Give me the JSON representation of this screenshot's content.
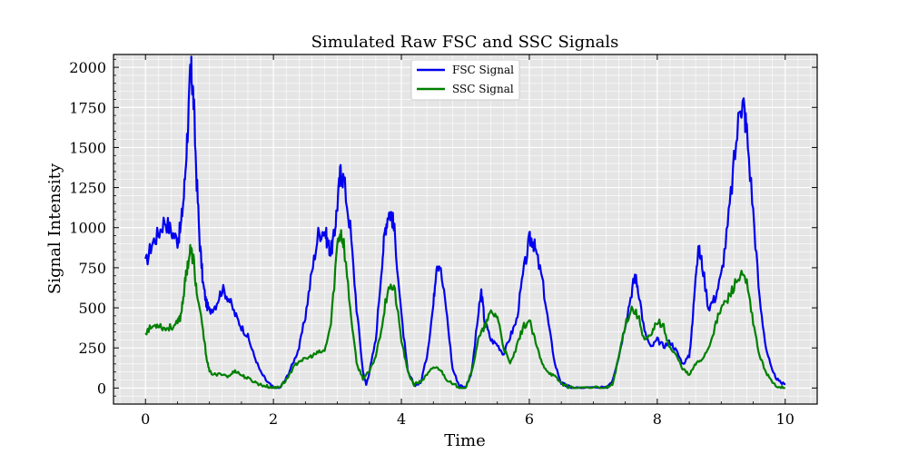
{
  "chart_data": {
    "type": "line",
    "title": "Simulated Raw FSC and SSC Signals",
    "xlabel": "Time",
    "ylabel": "Signal Intensity",
    "xlim": [
      -0.5,
      10.5
    ],
    "ylim": [
      -100,
      2080
    ],
    "x_ticks": [
      0,
      2,
      4,
      6,
      8,
      10
    ],
    "y_ticks": [
      0,
      250,
      500,
      750,
      1000,
      1250,
      1500,
      1750,
      2000
    ],
    "grid": true,
    "legend_position": "top-center",
    "series": [
      {
        "name": "FSC Signal",
        "color": "#0000ee",
        "points": [
          [
            0.0,
            770
          ],
          [
            0.1,
            900
          ],
          [
            0.2,
            960
          ],
          [
            0.3,
            1050
          ],
          [
            0.4,
            980
          ],
          [
            0.5,
            920
          ],
          [
            0.55,
            1000
          ],
          [
            0.6,
            1200
          ],
          [
            0.65,
            1550
          ],
          [
            0.7,
            1930
          ],
          [
            0.72,
            1960
          ],
          [
            0.75,
            1800
          ],
          [
            0.8,
            1300
          ],
          [
            0.85,
            900
          ],
          [
            0.9,
            650
          ],
          [
            0.95,
            530
          ],
          [
            1.0,
            480
          ],
          [
            1.1,
            520
          ],
          [
            1.2,
            620
          ],
          [
            1.3,
            560
          ],
          [
            1.4,
            460
          ],
          [
            1.5,
            380
          ],
          [
            1.6,
            320
          ],
          [
            1.7,
            200
          ],
          [
            1.8,
            100
          ],
          [
            1.9,
            40
          ],
          [
            2.0,
            0
          ],
          [
            2.1,
            0
          ],
          [
            2.2,
            60
          ],
          [
            2.3,
            150
          ],
          [
            2.4,
            250
          ],
          [
            2.5,
            450
          ],
          [
            2.6,
            720
          ],
          [
            2.7,
            960
          ],
          [
            2.8,
            990
          ],
          [
            2.85,
            900
          ],
          [
            2.9,
            850
          ],
          [
            2.95,
            950
          ],
          [
            3.0,
            1150
          ],
          [
            3.05,
            1350
          ],
          [
            3.1,
            1300
          ],
          [
            3.2,
            1000
          ],
          [
            3.3,
            500
          ],
          [
            3.4,
            100
          ],
          [
            3.45,
            20
          ],
          [
            3.5,
            100
          ],
          [
            3.6,
            300
          ],
          [
            3.7,
            800
          ],
          [
            3.75,
            1000
          ],
          [
            3.8,
            1100
          ],
          [
            3.85,
            1080
          ],
          [
            3.9,
            950
          ],
          [
            4.0,
            450
          ],
          [
            4.1,
            100
          ],
          [
            4.2,
            20
          ],
          [
            4.3,
            30
          ],
          [
            4.4,
            200
          ],
          [
            4.5,
            520
          ],
          [
            4.55,
            780
          ],
          [
            4.6,
            770
          ],
          [
            4.7,
            500
          ],
          [
            4.8,
            120
          ],
          [
            4.9,
            20
          ],
          [
            5.0,
            0
          ],
          [
            5.1,
            100
          ],
          [
            5.2,
            450
          ],
          [
            5.25,
            600
          ],
          [
            5.3,
            420
          ],
          [
            5.4,
            300
          ],
          [
            5.5,
            270
          ],
          [
            5.6,
            210
          ],
          [
            5.7,
            320
          ],
          [
            5.8,
            420
          ],
          [
            5.9,
            700
          ],
          [
            6.0,
            920
          ],
          [
            6.05,
            930
          ],
          [
            6.1,
            850
          ],
          [
            6.2,
            680
          ],
          [
            6.3,
            400
          ],
          [
            6.4,
            150
          ],
          [
            6.5,
            30
          ],
          [
            6.6,
            10
          ],
          [
            6.7,
            0
          ],
          [
            7.0,
            0
          ],
          [
            7.2,
            0
          ],
          [
            7.3,
            50
          ],
          [
            7.4,
            200
          ],
          [
            7.5,
            400
          ],
          [
            7.6,
            600
          ],
          [
            7.65,
            700
          ],
          [
            7.7,
            630
          ],
          [
            7.8,
            350
          ],
          [
            7.9,
            250
          ],
          [
            8.0,
            300
          ],
          [
            8.1,
            260
          ],
          [
            8.2,
            290
          ],
          [
            8.3,
            230
          ],
          [
            8.4,
            150
          ],
          [
            8.5,
            200
          ],
          [
            8.55,
            400
          ],
          [
            8.6,
            730
          ],
          [
            8.65,
            860
          ],
          [
            8.7,
            780
          ],
          [
            8.8,
            500
          ],
          [
            8.9,
            560
          ],
          [
            9.0,
            700
          ],
          [
            9.1,
            1000
          ],
          [
            9.2,
            1400
          ],
          [
            9.3,
            1780
          ],
          [
            9.35,
            1760
          ],
          [
            9.4,
            1600
          ],
          [
            9.5,
            1100
          ],
          [
            9.6,
            550
          ],
          [
            9.7,
            250
          ],
          [
            9.8,
            100
          ],
          [
            9.9,
            40
          ],
          [
            10.0,
            20
          ]
        ]
      },
      {
        "name": "SSC Signal",
        "color": "#007f00",
        "points": [
          [
            0.0,
            350
          ],
          [
            0.1,
            380
          ],
          [
            0.2,
            400
          ],
          [
            0.3,
            370
          ],
          [
            0.4,
            380
          ],
          [
            0.5,
            400
          ],
          [
            0.55,
            450
          ],
          [
            0.6,
            600
          ],
          [
            0.65,
            750
          ],
          [
            0.7,
            860
          ],
          [
            0.75,
            800
          ],
          [
            0.8,
            600
          ],
          [
            0.9,
            350
          ],
          [
            0.95,
            200
          ],
          [
            1.0,
            100
          ],
          [
            1.1,
            80
          ],
          [
            1.2,
            90
          ],
          [
            1.3,
            70
          ],
          [
            1.4,
            110
          ],
          [
            1.5,
            80
          ],
          [
            1.6,
            60
          ],
          [
            1.7,
            40
          ],
          [
            1.8,
            20
          ],
          [
            1.9,
            10
          ],
          [
            2.0,
            0
          ],
          [
            2.1,
            10
          ],
          [
            2.2,
            50
          ],
          [
            2.3,
            120
          ],
          [
            2.4,
            170
          ],
          [
            2.5,
            180
          ],
          [
            2.6,
            200
          ],
          [
            2.7,
            220
          ],
          [
            2.8,
            230
          ],
          [
            2.9,
            400
          ],
          [
            3.0,
            900
          ],
          [
            3.05,
            980
          ],
          [
            3.1,
            900
          ],
          [
            3.2,
            500
          ],
          [
            3.3,
            150
          ],
          [
            3.4,
            60
          ],
          [
            3.5,
            100
          ],
          [
            3.6,
            200
          ],
          [
            3.7,
            400
          ],
          [
            3.8,
            650
          ],
          [
            3.9,
            600
          ],
          [
            4.0,
            300
          ],
          [
            4.1,
            100
          ],
          [
            4.2,
            20
          ],
          [
            4.3,
            40
          ],
          [
            4.4,
            80
          ],
          [
            4.5,
            130
          ],
          [
            4.6,
            120
          ],
          [
            4.7,
            60
          ],
          [
            4.8,
            20
          ],
          [
            4.9,
            10
          ],
          [
            5.0,
            0
          ],
          [
            5.1,
            100
          ],
          [
            5.2,
            300
          ],
          [
            5.3,
            380
          ],
          [
            5.4,
            470
          ],
          [
            5.5,
            450
          ],
          [
            5.6,
            250
          ],
          [
            5.7,
            150
          ],
          [
            5.8,
            250
          ],
          [
            5.9,
            380
          ],
          [
            6.0,
            420
          ],
          [
            6.1,
            280
          ],
          [
            6.2,
            150
          ],
          [
            6.3,
            100
          ],
          [
            6.4,
            70
          ],
          [
            6.5,
            30
          ],
          [
            6.6,
            10
          ],
          [
            6.7,
            0
          ],
          [
            7.0,
            0
          ],
          [
            7.2,
            0
          ],
          [
            7.3,
            20
          ],
          [
            7.4,
            200
          ],
          [
            7.5,
            400
          ],
          [
            7.6,
            500
          ],
          [
            7.7,
            450
          ],
          [
            7.8,
            300
          ],
          [
            7.9,
            320
          ],
          [
            8.0,
            420
          ],
          [
            8.1,
            380
          ],
          [
            8.2,
            250
          ],
          [
            8.3,
            200
          ],
          [
            8.4,
            120
          ],
          [
            8.5,
            80
          ],
          [
            8.6,
            150
          ],
          [
            8.7,
            180
          ],
          [
            8.8,
            250
          ],
          [
            8.9,
            380
          ],
          [
            9.0,
            500
          ],
          [
            9.1,
            550
          ],
          [
            9.2,
            640
          ],
          [
            9.3,
            700
          ],
          [
            9.4,
            650
          ],
          [
            9.5,
            400
          ],
          [
            9.6,
            200
          ],
          [
            9.7,
            100
          ],
          [
            9.8,
            30
          ],
          [
            9.9,
            10
          ],
          [
            10.0,
            0
          ]
        ]
      }
    ]
  }
}
